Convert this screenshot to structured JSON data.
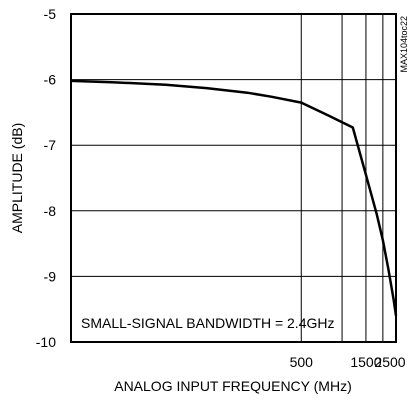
{
  "chart_data": {
    "type": "line",
    "title": "",
    "xlabel": "ANALOG INPUT FREQUENCY (MHz)",
    "ylabel": "AMPLITUDE (dB)",
    "xscale": "log",
    "xlim": [
      10,
      2500
    ],
    "ylim": [
      -10,
      -5
    ],
    "xticks": [
      500,
      1500,
      2500
    ],
    "xtick_labels": [
      "500",
      "1500",
      "2500"
    ],
    "x_gridlines": [
      500,
      1000,
      1500,
      2000,
      2500
    ],
    "yticks": [
      -5,
      -6,
      -7,
      -8,
      -9,
      -10
    ],
    "ytick_labels": [
      "-5",
      "-6",
      "-7",
      "-8",
      "-9",
      "-10"
    ],
    "grid": true,
    "annotation": "SMALL-SIGNAL BANDWIDTH = 2.4GHz",
    "figure_code": "MAX104toc22",
    "series": [
      {
        "x": [
          10,
          20,
          50,
          100,
          200,
          300,
          500,
          800,
          1000,
          1200,
          1500,
          1800,
          2000,
          2200,
          2400,
          2500
        ],
        "y": [
          -6.02,
          -6.04,
          -6.08,
          -6.13,
          -6.2,
          -6.26,
          -6.35,
          -6.55,
          -6.65,
          -6.73,
          -7.45,
          -8.05,
          -8.45,
          -8.9,
          -9.35,
          -9.6
        ]
      }
    ]
  }
}
